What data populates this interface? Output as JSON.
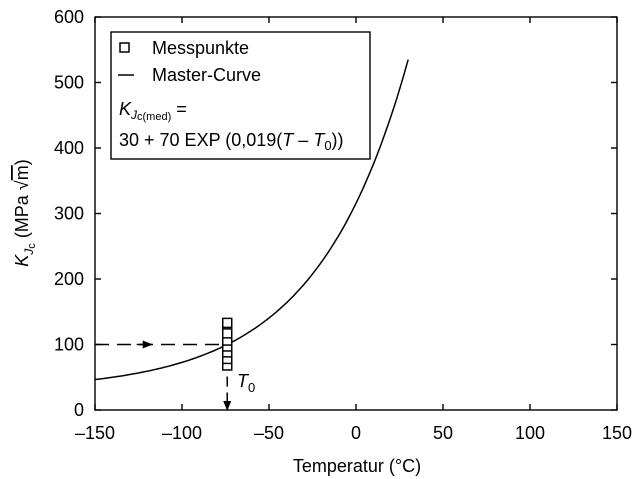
{
  "chart_data": {
    "type": "scatter",
    "title": "",
    "xlabel": "Temperatur (°C)",
    "ylabel_main": "K",
    "ylabel_sub": "J",
    "ylabel_subsub": "c",
    "ylabel_unit_open": " (MPa ",
    "ylabel_unit_sqrt": "√",
    "ylabel_unit_m": "m",
    "ylabel_unit_close": ")",
    "xlim": [
      -150,
      150
    ],
    "ylim": [
      0,
      600
    ],
    "xticks": [
      -150,
      -100,
      -50,
      0,
      50,
      100,
      150
    ],
    "yticks": [
      0,
      100,
      200,
      300,
      400,
      500,
      600
    ],
    "xtick_labels": [
      "–150",
      "–100",
      "–50",
      "0",
      "50",
      "100",
      "150"
    ],
    "ytick_labels": [
      "0",
      "100",
      "200",
      "300",
      "400",
      "500",
      "600"
    ],
    "grid": false,
    "legend_position": "top-left",
    "T0": -74,
    "T0_label_main": "T",
    "T0_label_sub": "0",
    "series": [
      {
        "name": "Messpunkte",
        "type": "scatter",
        "marker": "square-open",
        "x": [
          -74,
          -74,
          -74,
          -74,
          -74,
          -74,
          -74
        ],
        "y": [
          68,
          78,
          88,
          97,
          106,
          117,
          133
        ]
      },
      {
        "name": "Master-Curve",
        "type": "line",
        "formula": "30 + 70 EXP (0,019(T − T0))",
        "x_range": [
          -150,
          30
        ]
      }
    ],
    "guide_arrows": [
      {
        "from": [
          -150,
          100
        ],
        "to": [
          -74,
          100
        ],
        "style": "dashed"
      },
      {
        "from": [
          -74,
          100
        ],
        "to": [
          -74,
          0
        ],
        "style": "dashed"
      }
    ],
    "legend": {
      "entries": [
        {
          "marker": "square-open",
          "label": "Messpunkte"
        },
        {
          "marker": "line",
          "label": "Master-Curve"
        }
      ],
      "formula_lhs_main": "K",
      "formula_lhs_sub": "J",
      "formula_lhs_subsub": "c(med)",
      "formula_lhs_eq": " =",
      "formula_rhs_prefix": "30 + 70 EXP (0,019(",
      "formula_rhs_T": "T",
      "formula_rhs_minus": " – ",
      "formula_rhs_T0": "T",
      "formula_rhs_T0_sub": "0",
      "formula_rhs_suffix": "))"
    }
  }
}
